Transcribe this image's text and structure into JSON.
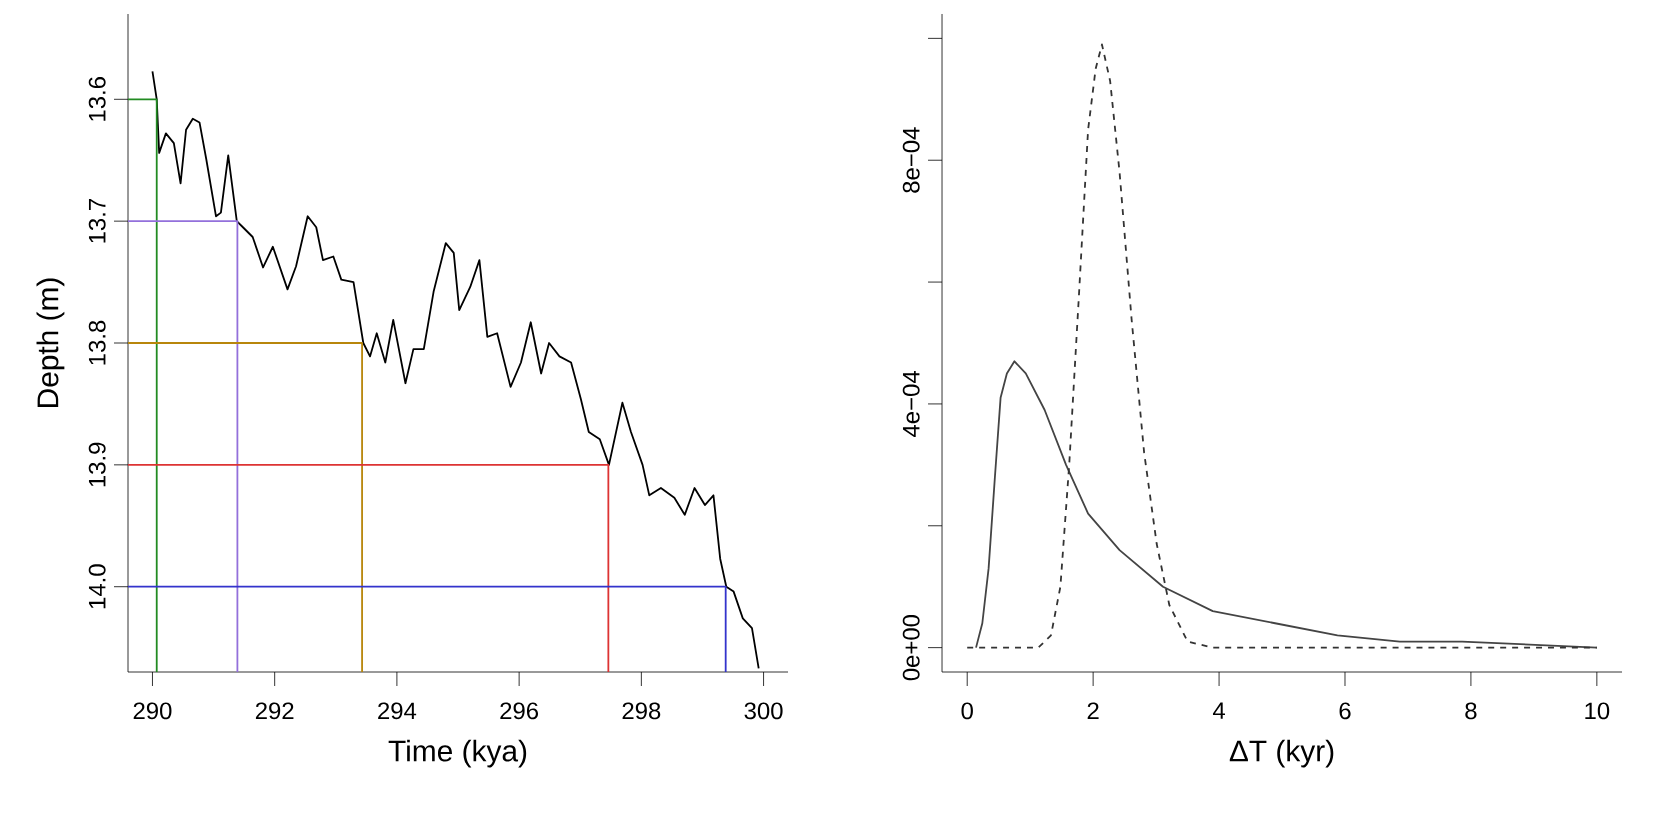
{
  "chart_data": [
    {
      "type": "line",
      "xlabel": "Time (kya)",
      "ylabel": "Depth (m)",
      "xlim": [
        289.6,
        300.4
      ],
      "ylim": [
        14.07,
        13.53
      ],
      "xticks": [
        290,
        292,
        294,
        296,
        298,
        300
      ],
      "yticks": [
        {
          "value": 13.6,
          "label": "13.6"
        },
        {
          "value": 13.7,
          "label": "13.7"
        },
        {
          "value": 13.8,
          "label": "13.8"
        },
        {
          "value": 13.9,
          "label": "13.9"
        },
        {
          "value": 14.0,
          "label": "14.0"
        }
      ],
      "series": [
        {
          "color": "#000000",
          "x": [
            290.0,
            290.07,
            290.11,
            290.22,
            290.35,
            290.46,
            290.55,
            290.66,
            290.77,
            290.88,
            291.04,
            291.12,
            291.24,
            291.38,
            291.48,
            291.64,
            291.81,
            291.97,
            292.21,
            292.35,
            292.54,
            292.68,
            292.79,
            292.96,
            293.09,
            293.29,
            293.45,
            293.56,
            293.67,
            293.81,
            293.94,
            294.14,
            294.27,
            294.44,
            294.6,
            294.8,
            294.93,
            295.02,
            295.2,
            295.35,
            295.48,
            295.64,
            295.86,
            296.03,
            296.19,
            296.36,
            296.49,
            296.66,
            296.85,
            297.01,
            297.14,
            297.32,
            297.47,
            297.69,
            297.83,
            298.02,
            298.13,
            298.32,
            298.54,
            298.71,
            298.87,
            299.04,
            299.18,
            299.29,
            299.39,
            299.51,
            299.66,
            299.81,
            299.92
          ],
          "values": [
            13.577,
            13.6,
            13.644,
            13.628,
            13.636,
            13.669,
            13.625,
            13.616,
            13.619,
            13.649,
            13.696,
            13.693,
            13.646,
            13.7,
            13.705,
            13.713,
            13.738,
            13.721,
            13.756,
            13.737,
            13.696,
            13.705,
            13.732,
            13.729,
            13.748,
            13.75,
            13.8,
            13.811,
            13.792,
            13.816,
            13.781,
            13.833,
            13.805,
            13.805,
            13.758,
            13.718,
            13.726,
            13.773,
            13.754,
            13.732,
            13.795,
            13.792,
            13.836,
            13.816,
            13.783,
            13.825,
            13.8,
            13.811,
            13.816,
            13.846,
            13.873,
            13.879,
            13.9,
            13.849,
            13.873,
            13.9,
            13.925,
            13.919,
            13.927,
            13.941,
            13.919,
            13.933,
            13.925,
            13.977,
            14.0,
            14.004,
            14.026,
            14.034,
            14.067
          ]
        },
        {
          "color": "#228b22",
          "x": [
            289.6,
            290.07,
            290.07
          ],
          "values": [
            13.6,
            13.6,
            14.07
          ]
        },
        {
          "color": "#9370db",
          "x": [
            289.6,
            291.39,
            291.39
          ],
          "values": [
            13.7,
            13.7,
            14.07
          ]
        },
        {
          "color": "#b8860b",
          "x": [
            289.6,
            293.43,
            293.43
          ],
          "values": [
            13.8,
            13.8,
            14.07
          ]
        },
        {
          "color": "#dd3333",
          "x": [
            289.6,
            297.46,
            297.46
          ],
          "values": [
            13.9,
            13.9,
            14.07
          ]
        },
        {
          "color": "#3333cc",
          "x": [
            289.6,
            299.38,
            299.38
          ],
          "values": [
            14.0,
            14.0,
            14.07
          ]
        }
      ]
    },
    {
      "type": "line",
      "xlabel": "ΔT (kyr)",
      "xlim": [
        -0.4,
        10.4
      ],
      "ylim": [
        -4e-05,
        0.00104
      ],
      "xticks": [
        0,
        2,
        4,
        6,
        8,
        10
      ],
      "yticks": [
        {
          "value": 0,
          "label": "0e+00"
        },
        {
          "value": 0.0002,
          "label": null
        },
        {
          "value": 0.0004,
          "label": "4e−04"
        },
        {
          "value": 0.0006,
          "label": null
        },
        {
          "value": 0.0008,
          "label": "8e−04"
        },
        {
          "value": 0.001,
          "label": null
        }
      ],
      "series": [
        {
          "color": "#444444",
          "line_style": "solid",
          "x": [
            0.14,
            0.24,
            0.34,
            0.44,
            0.53,
            0.63,
            0.75,
            0.93,
            1.23,
            1.57,
            1.92,
            2.42,
            3.11,
            3.9,
            4.89,
            5.88,
            6.87,
            7.86,
            10
          ],
          "values": [
            0,
            4e-05,
            0.00013,
            0.00028,
            0.00041,
            0.00045,
            0.00047,
            0.00045,
            0.00039,
            0.0003,
            0.00022,
            0.00016,
            0.0001,
            6e-05,
            4e-05,
            2e-05,
            1e-05,
            1e-05,
            0
          ]
        },
        {
          "color": "#333333",
          "line_style": "dashed",
          "x": [
            0,
            1.13,
            1.33,
            1.48,
            1.62,
            1.77,
            1.92,
            2.04,
            2.14,
            2.27,
            2.42,
            2.61,
            2.81,
            3.01,
            3.21,
            3.5,
            3.9,
            10
          ],
          "values": [
            0,
            0,
            2e-05,
            0.0001,
            0.0003,
            0.00057,
            0.00085,
            0.00095,
            0.00099,
            0.00093,
            0.00078,
            0.00054,
            0.00032,
            0.00017,
            7e-05,
            1e-05,
            0,
            0
          ]
        }
      ]
    }
  ]
}
